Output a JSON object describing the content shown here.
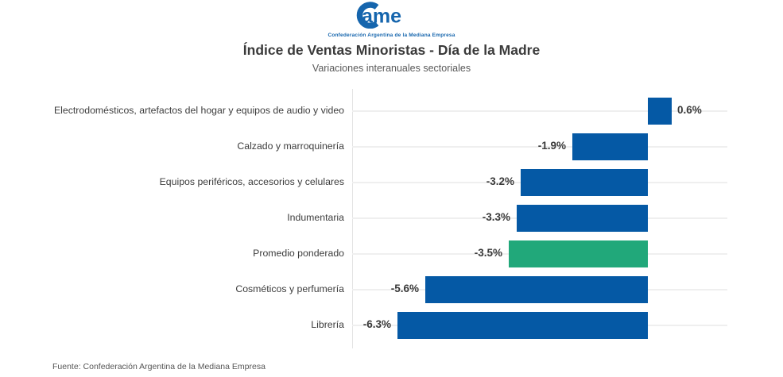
{
  "header": {
    "logo_text": "ame",
    "logo_tagline": "Confederación Argentina de la Mediana Empresa",
    "title": "Índice de Ventas Minoristas - Día de la Madre",
    "subtitle": "Variaciones interanuales sectoriales"
  },
  "footer": {
    "source": "Fuente: Confederación Argentina de la Mediana Empresa"
  },
  "colors": {
    "bar_blue": "#0559a5",
    "bar_green": "#21a87a",
    "logo_blue": "#1565ad",
    "gridline": "#efefef",
    "axis_line": "#e3e3e3"
  },
  "chart_data": {
    "type": "bar",
    "orientation": "horizontal",
    "title": "Índice de Ventas Minoristas - Día de la Madre",
    "subtitle": "Variaciones interanuales sectoriales",
    "categories": [
      "Electrodomésticos, artefactos del hogar y equipos de audio y video",
      "Calzado y marroquinería",
      "Equipos periféricos, accesorios y celulares",
      "Indumentaria",
      "Promedio ponderado",
      "Cosméticos y perfumería",
      "Librería"
    ],
    "values": [
      0.6,
      -1.9,
      -3.2,
      -3.3,
      -3.5,
      -5.6,
      -6.3
    ],
    "value_labels": [
      "0.6%",
      "-1.9%",
      "-3.2%",
      "-3.3%",
      "-3.5%",
      "-5.6%",
      "-6.3%"
    ],
    "unit": "%",
    "bar_color": "#0559a5",
    "highlight_color": "#21a87a",
    "highlight_index": 4,
    "xlim": [
      -7.5,
      2
    ],
    "grid": "per-category horizontal lines",
    "legend": "none",
    "value_label_position": "outside bar end, bold"
  }
}
